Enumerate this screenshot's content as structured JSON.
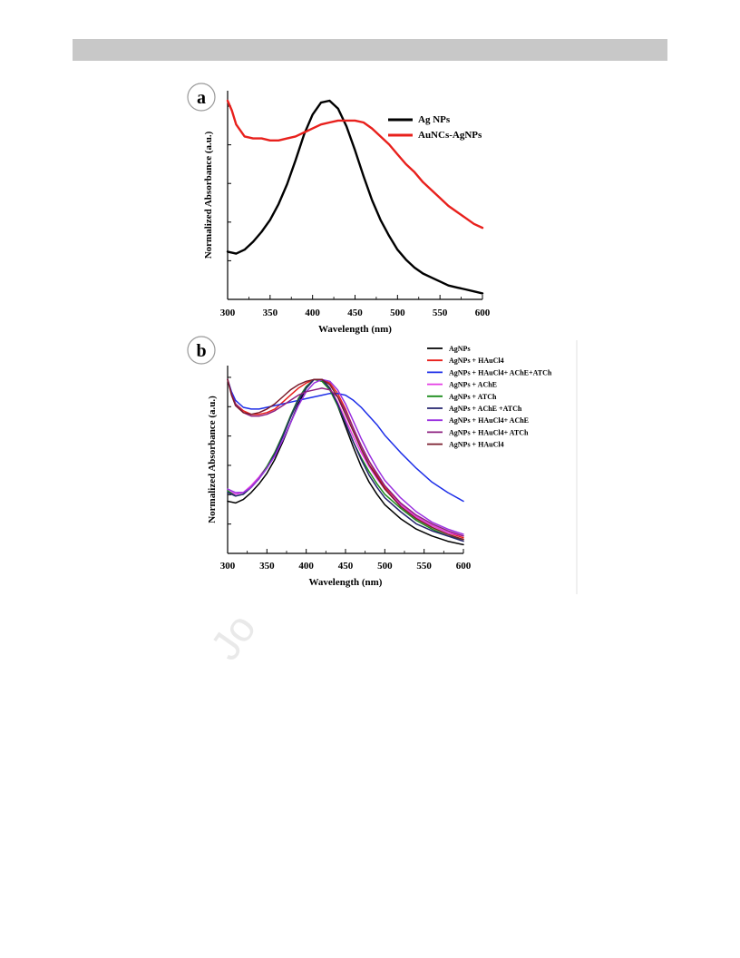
{
  "page": {
    "watermark": "Jo"
  },
  "chart_data": [
    {
      "type": "line",
      "panel_label": "a",
      "xlabel": "Wavelength (nm)",
      "ylabel": "Normalized Absorbance (a.u.)",
      "xlim": [
        300,
        600
      ],
      "ylim": [
        0,
        1.05
      ],
      "x_ticks": [
        300,
        350,
        400,
        450,
        500,
        550,
        600
      ],
      "y_ticks_labeled": false,
      "grid": false,
      "legend_position": "top-right",
      "series": [
        {
          "name": "Ag NPs",
          "color": "#000000",
          "x": [
            300,
            310,
            320,
            330,
            340,
            350,
            360,
            370,
            380,
            390,
            400,
            410,
            420,
            430,
            440,
            450,
            460,
            470,
            480,
            490,
            500,
            510,
            520,
            530,
            540,
            550,
            560,
            570,
            580,
            590,
            600
          ],
          "y": [
            0.24,
            0.23,
            0.25,
            0.29,
            0.34,
            0.4,
            0.48,
            0.58,
            0.7,
            0.83,
            0.93,
            0.99,
            1.0,
            0.96,
            0.87,
            0.75,
            0.62,
            0.5,
            0.4,
            0.32,
            0.25,
            0.2,
            0.16,
            0.13,
            0.11,
            0.09,
            0.07,
            0.06,
            0.05,
            0.04,
            0.03
          ]
        },
        {
          "name": "AuNCs-AgNPs",
          "color": "#e8201c",
          "x": [
            300,
            305,
            310,
            320,
            330,
            340,
            350,
            360,
            370,
            380,
            390,
            400,
            410,
            420,
            430,
            440,
            450,
            460,
            470,
            480,
            490,
            500,
            510,
            520,
            530,
            540,
            550,
            560,
            570,
            580,
            590,
            600
          ],
          "y": [
            1.0,
            0.95,
            0.88,
            0.82,
            0.81,
            0.81,
            0.8,
            0.8,
            0.81,
            0.82,
            0.84,
            0.86,
            0.88,
            0.89,
            0.9,
            0.9,
            0.9,
            0.89,
            0.86,
            0.82,
            0.78,
            0.73,
            0.68,
            0.64,
            0.59,
            0.55,
            0.51,
            0.47,
            0.44,
            0.41,
            0.38,
            0.36
          ]
        }
      ]
    },
    {
      "type": "line",
      "panel_label": "b",
      "xlabel": "Wavelength (nm)",
      "ylabel": "Normalized Absorbance (a.u.)",
      "xlim": [
        300,
        600
      ],
      "ylim": [
        0,
        1.08
      ],
      "x_ticks": [
        300,
        350,
        400,
        450,
        500,
        550,
        600
      ],
      "y_ticks_labeled": false,
      "grid": false,
      "legend_position": "top-right",
      "series": [
        {
          "name": "AgNPs",
          "color": "#000000",
          "x": [
            300,
            310,
            320,
            330,
            340,
            350,
            360,
            370,
            380,
            390,
            400,
            410,
            420,
            430,
            440,
            450,
            460,
            470,
            480,
            490,
            500,
            520,
            540,
            560,
            580,
            600
          ],
          "y": [
            0.3,
            0.29,
            0.31,
            0.35,
            0.4,
            0.46,
            0.54,
            0.64,
            0.75,
            0.86,
            0.95,
            1.0,
            1.0,
            0.95,
            0.85,
            0.73,
            0.61,
            0.5,
            0.41,
            0.34,
            0.28,
            0.2,
            0.14,
            0.1,
            0.07,
            0.05
          ]
        },
        {
          "name": "AgNPs + HAuCl4",
          "color": "#e8201c",
          "x": [
            300,
            305,
            310,
            320,
            330,
            340,
            350,
            360,
            370,
            380,
            390,
            400,
            410,
            420,
            430,
            440,
            450,
            460,
            470,
            480,
            490,
            500,
            520,
            540,
            560,
            580,
            600
          ],
          "y": [
            1.0,
            0.92,
            0.86,
            0.82,
            0.8,
            0.8,
            0.81,
            0.83,
            0.87,
            0.91,
            0.95,
            0.98,
            1.0,
            1.0,
            0.98,
            0.92,
            0.83,
            0.72,
            0.62,
            0.53,
            0.45,
            0.38,
            0.28,
            0.21,
            0.16,
            0.12,
            0.09
          ]
        },
        {
          "name": "AgNPs + HAuCl4+ AChE+ATCh",
          "color": "#1c2de8",
          "x": [
            300,
            305,
            310,
            320,
            330,
            340,
            350,
            360,
            370,
            380,
            390,
            400,
            410,
            420,
            430,
            440,
            450,
            460,
            470,
            480,
            490,
            500,
            520,
            540,
            560,
            580,
            600
          ],
          "y": [
            1.0,
            0.93,
            0.88,
            0.84,
            0.83,
            0.83,
            0.84,
            0.85,
            0.86,
            0.87,
            0.88,
            0.89,
            0.9,
            0.91,
            0.92,
            0.92,
            0.91,
            0.88,
            0.84,
            0.79,
            0.74,
            0.68,
            0.58,
            0.49,
            0.41,
            0.35,
            0.3
          ]
        },
        {
          "name": "AgNPs + AChE",
          "color": "#e43ce4",
          "x": [
            300,
            310,
            320,
            330,
            340,
            350,
            360,
            370,
            380,
            390,
            400,
            410,
            420,
            430,
            440,
            450,
            460,
            470,
            480,
            490,
            500,
            520,
            540,
            560,
            580,
            600
          ],
          "y": [
            0.36,
            0.34,
            0.35,
            0.39,
            0.44,
            0.5,
            0.58,
            0.68,
            0.79,
            0.89,
            0.96,
            1.0,
            0.99,
            0.95,
            0.87,
            0.77,
            0.67,
            0.58,
            0.5,
            0.43,
            0.37,
            0.28,
            0.21,
            0.16,
            0.12,
            0.1
          ]
        },
        {
          "name": "AgNPs + ATCh",
          "color": "#1c8c1c",
          "x": [
            300,
            310,
            320,
            330,
            340,
            350,
            360,
            370,
            380,
            390,
            400,
            410,
            420,
            430,
            440,
            450,
            460,
            470,
            480,
            490,
            500,
            520,
            540,
            560,
            580,
            600
          ],
          "y": [
            0.36,
            0.33,
            0.34,
            0.38,
            0.43,
            0.5,
            0.58,
            0.68,
            0.79,
            0.89,
            0.96,
            1.0,
            0.99,
            0.94,
            0.85,
            0.75,
            0.64,
            0.55,
            0.47,
            0.4,
            0.34,
            0.26,
            0.19,
            0.14,
            0.1,
            0.08
          ]
        },
        {
          "name": "AgNPs + AChE +ATCh",
          "color": "#24246e",
          "x": [
            300,
            310,
            320,
            330,
            340,
            350,
            360,
            370,
            380,
            390,
            400,
            410,
            420,
            430,
            440,
            450,
            460,
            470,
            480,
            490,
            500,
            520,
            540,
            560,
            580,
            600
          ],
          "y": [
            0.35,
            0.33,
            0.34,
            0.38,
            0.43,
            0.49,
            0.57,
            0.67,
            0.78,
            0.88,
            0.95,
            1.0,
            1.0,
            0.95,
            0.86,
            0.75,
            0.64,
            0.54,
            0.45,
            0.38,
            0.32,
            0.24,
            0.17,
            0.13,
            0.1,
            0.07
          ]
        },
        {
          "name": "AgNPs + HAuCl4+ AChE",
          "color": "#9a30e0",
          "x": [
            300,
            310,
            320,
            330,
            340,
            350,
            360,
            370,
            380,
            390,
            400,
            410,
            420,
            430,
            440,
            450,
            460,
            470,
            480,
            490,
            500,
            520,
            540,
            560,
            580,
            600
          ],
          "y": [
            0.37,
            0.35,
            0.35,
            0.38,
            0.43,
            0.49,
            0.56,
            0.65,
            0.75,
            0.85,
            0.93,
            0.98,
            1.0,
            0.99,
            0.94,
            0.86,
            0.76,
            0.66,
            0.57,
            0.49,
            0.42,
            0.32,
            0.24,
            0.18,
            0.14,
            0.11
          ]
        },
        {
          "name": "AgNPs + HAuCl4+ ATCh",
          "color": "#8e2080",
          "x": [
            300,
            305,
            310,
            320,
            330,
            340,
            350,
            360,
            370,
            380,
            390,
            400,
            410,
            420,
            430,
            440,
            450,
            460,
            470,
            480,
            490,
            500,
            520,
            540,
            560,
            580,
            600
          ],
          "y": [
            1.0,
            0.92,
            0.86,
            0.81,
            0.79,
            0.79,
            0.8,
            0.82,
            0.85,
            0.88,
            0.91,
            0.93,
            0.94,
            0.95,
            0.94,
            0.9,
            0.82,
            0.72,
            0.62,
            0.53,
            0.46,
            0.39,
            0.29,
            0.22,
            0.17,
            0.13,
            0.1
          ]
        },
        {
          "name": "AgNPs + HAuCl4",
          "color": "#7a1c2c",
          "x": [
            300,
            305,
            310,
            320,
            330,
            340,
            350,
            360,
            370,
            380,
            390,
            400,
            410,
            420,
            430,
            440,
            450,
            460,
            470,
            480,
            490,
            500,
            520,
            540,
            560,
            580,
            600
          ],
          "y": [
            1.0,
            0.91,
            0.85,
            0.81,
            0.8,
            0.81,
            0.83,
            0.86,
            0.9,
            0.94,
            0.97,
            0.99,
            1.0,
            1.0,
            0.97,
            0.9,
            0.8,
            0.7,
            0.6,
            0.51,
            0.44,
            0.37,
            0.27,
            0.2,
            0.15,
            0.11,
            0.08
          ]
        }
      ]
    }
  ]
}
